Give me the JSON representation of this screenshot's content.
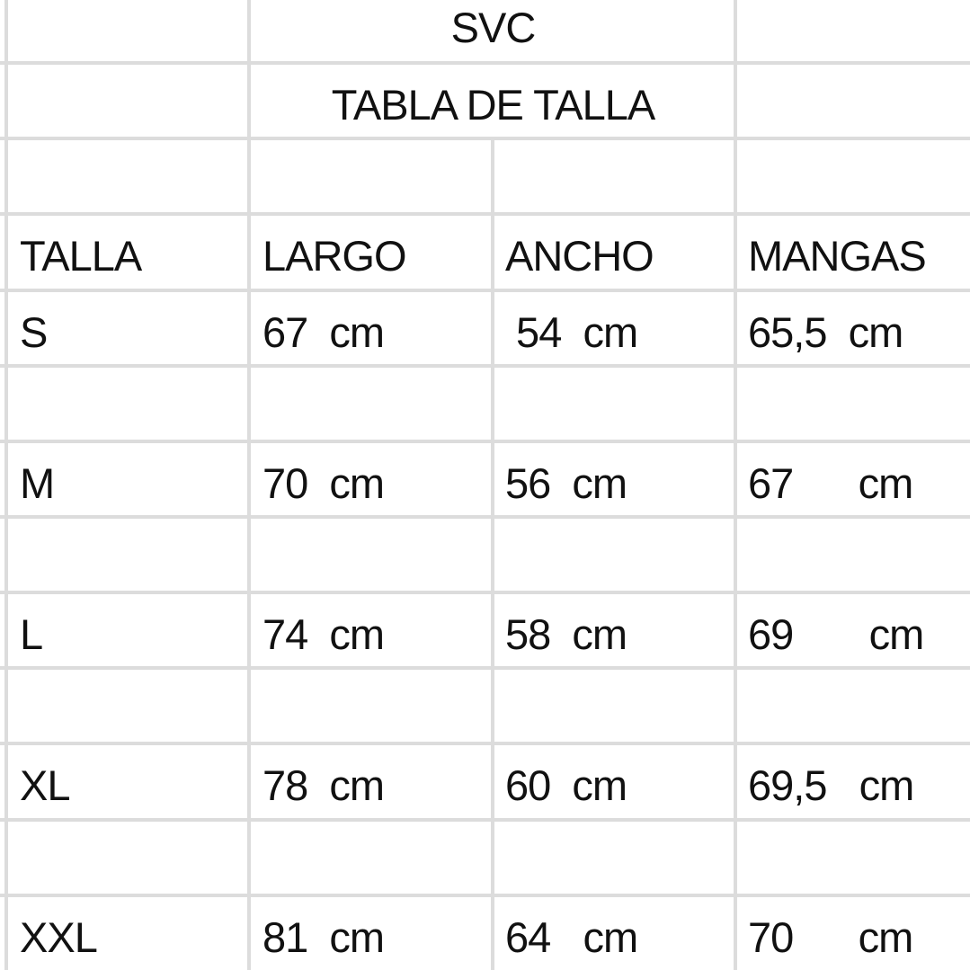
{
  "sheet": {
    "title": "SVC",
    "subtitle": "TABLA DE TALLA",
    "headers": [
      "TALLA",
      "LARGO",
      "ANCHO",
      "MANGAS"
    ],
    "rows": [
      {
        "talla": "S",
        "largo": "67  cm",
        "ancho": " 54  cm",
        "mangas": "65,5  cm"
      },
      {
        "talla": "M",
        "largo": "70  cm",
        "ancho": "56  cm",
        "mangas": "67      cm"
      },
      {
        "talla": "L",
        "largo": "74  cm",
        "ancho": "58  cm",
        "mangas": "69       cm"
      },
      {
        "talla": "XL",
        "largo": "78  cm",
        "ancho": "60  cm",
        "mangas": "69,5   cm"
      },
      {
        "talla": "XXL",
        "largo": "81  cm",
        "ancho": "64   cm",
        "mangas": "70      cm"
      }
    ],
    "grid_color": "#dcdcdc"
  }
}
